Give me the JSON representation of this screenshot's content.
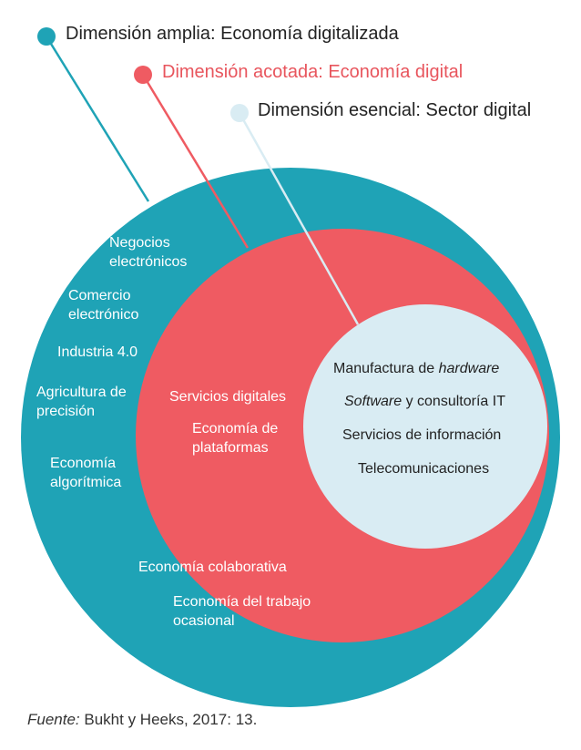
{
  "colors": {
    "outer": "#1fa3b6",
    "middle": "#ef5b62",
    "inner": "#d9ecf3",
    "middle_label": "#e8555d"
  },
  "legend": {
    "broad": "Dimensión amplia: Economía digitalizada",
    "narrow": "Dimensión acotada: Economía digital",
    "core": "Dimensión esencial: Sector digital"
  },
  "broad_items": {
    "negocios": "Negocios electrónicos",
    "comercio": "Comercio electrónico",
    "industria": "Industria 4.0",
    "agricultura": "Agricultura de precisión",
    "algoritmica": "Economía algorítmica",
    "colaborativa": "Economía colaborativa",
    "trabajo": "Economía del trabajo ocasional"
  },
  "narrow_items": {
    "servicios": "Servicios digitales",
    "plataformas": "Economía de plataformas"
  },
  "core_items": {
    "hardware_pre": "Manufactura de ",
    "hardware_em": "hardware",
    "software_em": "Software",
    "software_post": " y consultoría IT",
    "informacion": "Servicios de información",
    "telecom": "Telecomunicaciones"
  },
  "source": {
    "label": "Fuente:",
    "text": " Bukht y Heeks, 2017: 13."
  }
}
